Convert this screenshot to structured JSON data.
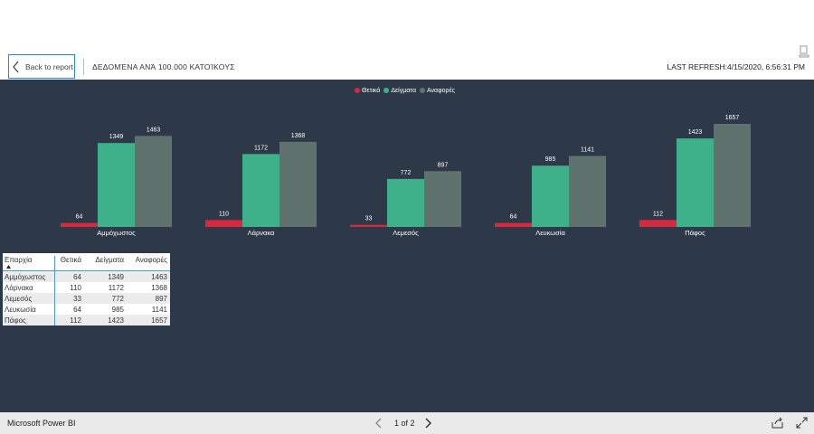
{
  "header": {
    "back_label": "Back to report",
    "page_title": "ΔΕΔΟΜΈΝΑ ΑΝΆ 100.000 ΚΑΤΟΊΚΟΥΣ",
    "refresh_text": "LAST REFRESH:4/15/2020, 6:56:31 PM"
  },
  "colors": {
    "canvas": "#2d3948",
    "series": [
      "#d8283e",
      "#3eb08a",
      "#5f726d"
    ]
  },
  "chart_data": {
    "type": "bar",
    "categories": [
      "Αμμόχωστος",
      "Λάρνακα",
      "Λεμεσός",
      "Λευκωσία",
      "Πάφος"
    ],
    "series": [
      {
        "name": "Θετικά",
        "values": [
          64,
          110,
          33,
          64,
          112
        ]
      },
      {
        "name": "Δείγματα",
        "values": [
          1349,
          1172,
          772,
          985,
          1423
        ]
      },
      {
        "name": "Αναφορές",
        "values": [
          1463,
          1368,
          897,
          1141,
          1657
        ]
      }
    ],
    "legend_position": "top-center",
    "data_labels": true,
    "ylim": [
      0,
      1657
    ]
  },
  "table": {
    "headers": [
      "Επαρχία",
      "Θετικά",
      "Δείγματα",
      "Αναφορές"
    ],
    "rows": [
      [
        "Αμμόχωστος",
        "64",
        "1349",
        "1463"
      ],
      [
        "Λάρνακα",
        "110",
        "1172",
        "1368"
      ],
      [
        "Λεμεσός",
        "33",
        "772",
        "897"
      ],
      [
        "Λευκωσία",
        "64",
        "985",
        "1141"
      ],
      [
        "Πάφος",
        "112",
        "1423",
        "1657"
      ]
    ]
  },
  "footer": {
    "brand": "Microsoft Power BI",
    "pager": "1 of 2"
  },
  "icons": [
    "chevron-left-icon",
    "export-icon",
    "sort-ascending-icon",
    "chevron-right-icon",
    "share-icon",
    "fullscreen-icon"
  ]
}
